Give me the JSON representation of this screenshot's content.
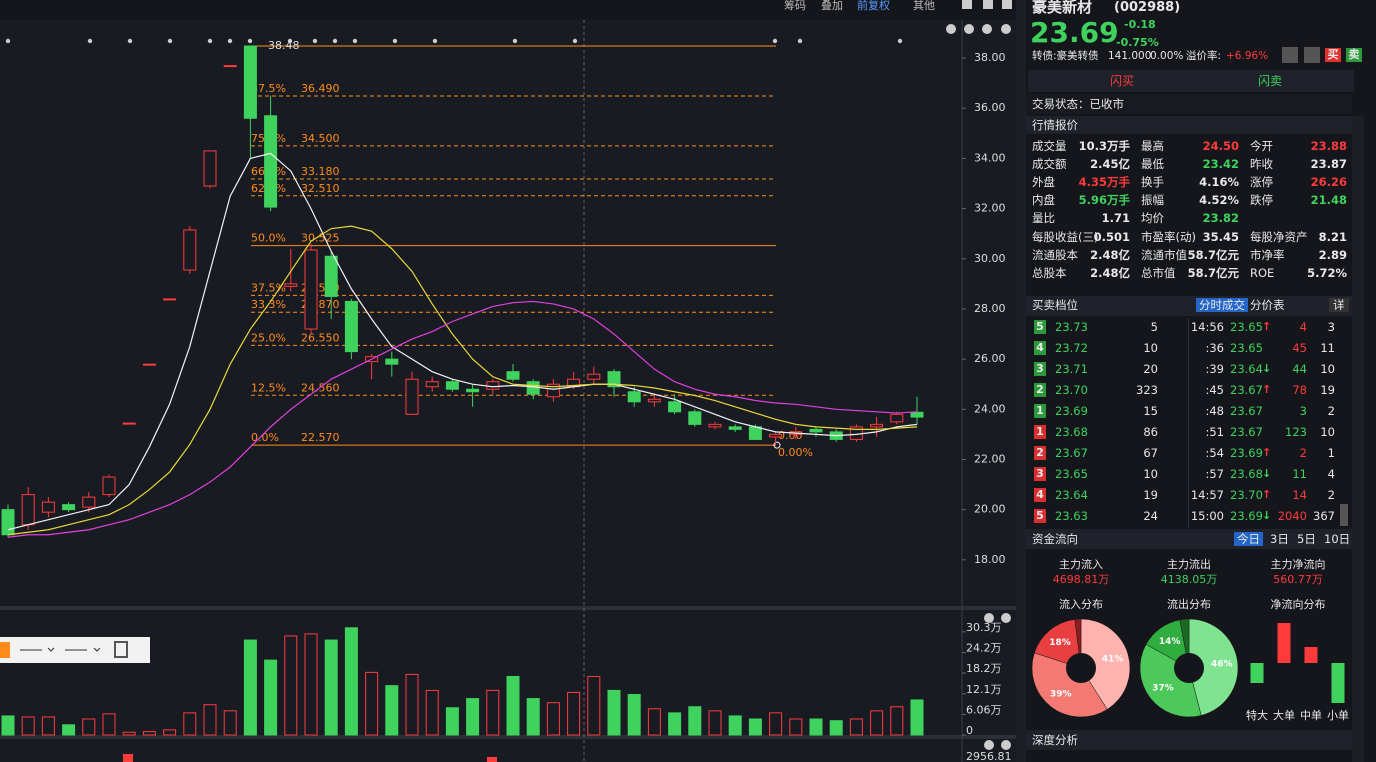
{
  "toolbar": [
    "筹码",
    "叠加",
    "前复权",
    "其他"
  ],
  "chart_data": [
    {
      "type": "candlestick",
      "open": [
        20.0,
        19.4,
        19.9,
        20.2,
        20.1,
        20.6,
        23.45,
        25.8,
        28.4,
        29.55,
        32.9,
        37.7,
        38.48,
        35.7,
        28.9,
        27.2,
        30.1,
        28.3,
        25.9,
        26.0,
        23.8,
        24.9,
        25.1,
        24.8,
        24.8,
        25.5,
        25.1,
        24.5,
        24.9,
        25.2,
        25.5,
        24.7,
        24.3,
        24.3,
        23.9,
        23.3,
        23.3,
        23.3,
        22.9,
        23.0,
        23.2,
        23.1,
        22.8,
        23.3,
        23.5,
        23.88
      ],
      "high": [
        20.2,
        20.9,
        20.5,
        20.3,
        20.7,
        21.4,
        23.45,
        25.8,
        28.4,
        31.3,
        34.3,
        37.7,
        38.48,
        36.5,
        30.4,
        30.6,
        30.3,
        28.4,
        26.2,
        26.3,
        25.5,
        25.3,
        25.2,
        25.0,
        25.2,
        25.8,
        25.2,
        25.2,
        25.5,
        25.7,
        25.6,
        24.9,
        24.6,
        24.6,
        24.0,
        23.5,
        23.4,
        23.4,
        23.1,
        23.3,
        23.3,
        23.2,
        23.4,
        23.7,
        23.9,
        24.5
      ],
      "low": [
        18.9,
        19.2,
        19.7,
        19.9,
        19.9,
        20.5,
        23.45,
        25.8,
        28.4,
        29.4,
        32.8,
        37.7,
        34.0,
        31.9,
        28.7,
        27.0,
        27.6,
        26.0,
        25.2,
        25.3,
        23.8,
        24.7,
        24.7,
        24.1,
        24.6,
        25.1,
        24.4,
        24.3,
        24.8,
        25.0,
        24.5,
        24.1,
        24.1,
        23.8,
        23.3,
        23.2,
        23.1,
        22.8,
        22.57,
        22.8,
        22.9,
        22.7,
        22.7,
        22.9,
        23.4,
        23.42
      ],
      "close": [
        19.0,
        20.6,
        20.3,
        20.0,
        20.5,
        21.3,
        23.45,
        25.8,
        28.4,
        31.15,
        34.3,
        37.7,
        35.6,
        32.06,
        29.0,
        30.35,
        28.5,
        26.3,
        26.1,
        25.8,
        25.2,
        25.1,
        24.8,
        24.7,
        25.1,
        25.2,
        24.6,
        25.0,
        25.2,
        25.4,
        24.9,
        24.3,
        24.4,
        23.9,
        23.4,
        23.4,
        23.2,
        22.8,
        23.0,
        23.1,
        23.1,
        22.8,
        23.3,
        23.4,
        23.8,
        23.69
      ],
      "up_color": "#ff3b3b",
      "down_color": "#3fd35e",
      "ylim": [
        16.2,
        38.72
      ],
      "yticks": [
        {
          "value": 18,
          "label": "18.00"
        },
        {
          "value": 20,
          "label": "20.00"
        },
        {
          "value": 22,
          "label": "22.00"
        },
        {
          "value": 24,
          "label": "24.00"
        },
        {
          "value": 26,
          "label": "26.00"
        },
        {
          "value": 28,
          "label": "28.00"
        },
        {
          "value": 30,
          "label": "30.00"
        },
        {
          "value": 32,
          "label": "32.00"
        },
        {
          "value": 34,
          "label": "34.00"
        },
        {
          "value": 36,
          "label": "36.00"
        },
        {
          "value": 38,
          "label": "38.00"
        }
      ],
      "ma_lines": [
        {
          "color": "#f2f2f2",
          "values": [
            19.2,
            19.4,
            19.6,
            19.8,
            20.0,
            20.2,
            21.0,
            22.5,
            24.2,
            26.5,
            29.5,
            32.5,
            34.0,
            34.2,
            33.5,
            32.0,
            30.3,
            28.8,
            27.6,
            26.5,
            26.0,
            25.5,
            25.2,
            25.0,
            24.9,
            24.95,
            24.9,
            24.8,
            24.9,
            25.0,
            25.0,
            24.8,
            24.6,
            24.4,
            24.1,
            23.8,
            23.5,
            23.3,
            23.1,
            23.05,
            23.0,
            22.95,
            23.0,
            23.1,
            23.3,
            23.4
          ]
        },
        {
          "color": "#e8d936",
          "values": [
            19.0,
            19.1,
            19.2,
            19.4,
            19.6,
            19.8,
            20.2,
            20.8,
            21.5,
            22.6,
            24.0,
            25.8,
            27.2,
            28.3,
            29.5,
            30.7,
            31.2,
            31.3,
            31.1,
            30.4,
            29.5,
            28.2,
            27.0,
            26.0,
            25.3,
            25.0,
            24.95,
            24.9,
            24.95,
            25.0,
            25.0,
            24.95,
            24.85,
            24.7,
            24.55,
            24.35,
            24.1,
            23.85,
            23.6,
            23.4,
            23.3,
            23.25,
            23.2,
            23.2,
            23.25,
            23.3
          ]
        },
        {
          "color": "#e040e0",
          "values": [
            18.9,
            19.0,
            19.0,
            19.1,
            19.2,
            19.4,
            19.6,
            19.9,
            20.2,
            20.6,
            21.1,
            21.7,
            22.5,
            23.3,
            24.0,
            24.6,
            25.2,
            25.6,
            26.0,
            26.4,
            26.8,
            27.1,
            27.5,
            27.8,
            28.1,
            28.25,
            28.3,
            28.2,
            28.0,
            27.6,
            27.0,
            26.3,
            25.6,
            25.1,
            24.8,
            24.6,
            24.5,
            24.35,
            24.25,
            24.2,
            24.1,
            24.0,
            23.95,
            23.9,
            23.85,
            23.9
          ]
        }
      ],
      "fib": {
        "color": "#ff8c1a",
        "high": {
          "value": 38.48,
          "label": "38.48"
        },
        "levels": [
          {
            "pct": "87.5%",
            "value": 36.49,
            "label": "36.490",
            "dashed": true
          },
          {
            "pct": "75.0%",
            "value": 34.5,
            "label": "34.500",
            "dashed": true
          },
          {
            "pct": "66.7%",
            "value": 33.18,
            "label": "33.180",
            "dashed": true
          },
          {
            "pct": "62.5%",
            "value": 32.51,
            "label": "32.510",
            "dashed": true
          },
          {
            "pct": "50.0%",
            "value": 30.525,
            "label": "30.525",
            "dashed": false
          },
          {
            "pct": "37.5%",
            "value": 28.54,
            "label": "28.540",
            "dashed": true
          },
          {
            "pct": "33.3%",
            "value": 27.87,
            "label": "27.870",
            "dashed": true
          },
          {
            "pct": "25.0%",
            "value": 26.55,
            "label": "26.550",
            "dashed": true
          },
          {
            "pct": "12.5%",
            "value": 24.56,
            "label": "24.560",
            "dashed": true
          },
          {
            "pct": "0.0%",
            "value": 22.57,
            "label": "22.570",
            "dashed": false
          }
        ],
        "low_labels": [
          "0.00",
          "0.00%"
        ]
      }
    },
    {
      "type": "bar",
      "values": [
        5.6,
        5.3,
        5.3,
        3.0,
        4.7,
        6.2,
        0.8,
        1.0,
        1.5,
        6.5,
        8.9,
        7.1,
        27.9,
        22.0,
        29.1,
        29.7,
        27.9,
        31.5,
        18.4,
        14.5,
        17.8,
        13.1,
        8.0,
        10.7,
        13.1,
        17.2,
        10.7,
        9.5,
        12.5,
        17.2,
        13.1,
        11.9,
        7.7,
        6.5,
        8.3,
        7.1,
        5.6,
        4.7,
        6.5,
        4.7,
        4.7,
        4.2,
        4.7,
        7.1,
        8.3,
        10.3
      ],
      "ylim": [
        0,
        33.2
      ],
      "yticks": [
        0,
        {
          "value": 6.06,
          "label": "6.06万"
        },
        {
          "value": 12.1,
          "label": "12.1万"
        },
        {
          "value": 18.2,
          "label": "18.2万"
        },
        {
          "value": 24.2,
          "label": "24.2万"
        },
        {
          "value": 30.3,
          "label": "30.3万"
        }
      ]
    }
  ],
  "indicator_label": "2956.81",
  "stock": {
    "name": "豪美新材",
    "code": "(002988)",
    "price": "23.69",
    "change": "-0.18",
    "change_pct": "-0.75%",
    "bond": "转债:豪美转债",
    "bond_price": "141.000",
    "bond_pct": "0.00%",
    "premium_label": "溢价率:",
    "premium": "+6.96%",
    "buy": "买",
    "sell": "卖"
  },
  "flash": [
    "闪买",
    "闪卖"
  ],
  "status": "交易状态：已收市",
  "quote": {
    "title": "行情报价",
    "rows": [
      [
        {
          "label": "成交量",
          "value": "10.3万手",
          "color": "#e8e8e8"
        },
        {
          "label": "最高",
          "value": "24.50",
          "color": "#ff3b3b"
        },
        {
          "label": "今开",
          "value": "23.88",
          "color": "#ff3b3b"
        }
      ],
      [
        {
          "label": "成交额",
          "value": "2.45亿",
          "color": "#e8e8e8"
        },
        {
          "label": "最低",
          "value": "23.42",
          "color": "#3fd35e"
        },
        {
          "label": "昨收",
          "value": "23.87",
          "color": "#e8e8e8"
        }
      ],
      [
        {
          "label": "外盘",
          "value": "4.35万手",
          "color": "#ff3b3b"
        },
        {
          "label": "换手",
          "value": "4.16%",
          "color": "#e8e8e8"
        },
        {
          "label": "涨停",
          "value": "26.26",
          "color": "#ff3b3b"
        }
      ],
      [
        {
          "label": "内盘",
          "value": "5.96万手",
          "color": "#3fd35e"
        },
        {
          "label": "振幅",
          "value": "4.52%",
          "color": "#e8e8e8"
        },
        {
          "label": "跌停",
          "value": "21.48",
          "color": "#3fd35e"
        }
      ],
      [
        {
          "label": "量比",
          "value": "1.71",
          "color": "#e8e8e8"
        },
        {
          "label": "均价",
          "value": "23.82",
          "color": "#3fd35e"
        }
      ],
      [
        {
          "label": "每股收益(三)",
          "value": "0.501",
          "color": "#e8e8e8"
        },
        {
          "label": "市盈率(动)",
          "value": "35.45",
          "color": "#e8e8e8"
        },
        {
          "label": "每股净资产",
          "value": "8.21",
          "color": "#e8e8e8"
        }
      ],
      [
        {
          "label": "流通股本",
          "value": "2.48亿",
          "color": "#e8e8e8"
        },
        {
          "label": "流通市值",
          "value": "58.7亿元",
          "color": "#e8e8e8"
        },
        {
          "label": "市净率",
          "value": "2.89",
          "color": "#e8e8e8"
        }
      ],
      [
        {
          "label": "总股本",
          "value": "2.48亿",
          "color": "#e8e8e8"
        },
        {
          "label": "总市值",
          "value": "58.7亿元",
          "color": "#e8e8e8"
        },
        {
          "label": "ROE",
          "value": "5.72%",
          "color": "#e8e8e8"
        }
      ]
    ]
  },
  "book": {
    "title": "买卖档位",
    "tabs": [
      "分时成交",
      "分价表",
      "详"
    ],
    "asks": [
      {
        "level": "5",
        "price": "23.73",
        "vol": "5"
      },
      {
        "level": "4",
        "price": "23.72",
        "vol": "10"
      },
      {
        "level": "3",
        "price": "23.71",
        "vol": "20"
      },
      {
        "level": "2",
        "price": "23.70",
        "vol": "323"
      },
      {
        "level": "1",
        "price": "23.69",
        "vol": "15"
      }
    ],
    "bids": [
      {
        "level": "1",
        "price": "23.68",
        "vol": "86"
      },
      {
        "level": "2",
        "price": "23.67",
        "vol": "67"
      },
      {
        "level": "3",
        "price": "23.65",
        "vol": "10"
      },
      {
        "level": "4",
        "price": "23.64",
        "vol": "19"
      },
      {
        "level": "5",
        "price": "23.63",
        "vol": "24"
      }
    ],
    "trades": [
      {
        "time": "14:56",
        "price": "23.65",
        "arrow": "↑",
        "vol": "4",
        "count": "3",
        "color": "#ff3b3b"
      },
      {
        "time": ":36",
        "price": "23.65",
        "vol": "45",
        "count": "11",
        "color": "#ff3b3b"
      },
      {
        "time": ":39",
        "price": "23.64",
        "arrow": "↓",
        "vol": "44",
        "count": "10",
        "color": "#3fd35e"
      },
      {
        "time": ":45",
        "price": "23.67",
        "arrow": "↑",
        "vol": "78",
        "count": "19",
        "color": "#ff3b3b"
      },
      {
        "time": ":48",
        "price": "23.67",
        "vol": "3",
        "count": "2",
        "color": "#3fd35e"
      },
      {
        "time": ":51",
        "price": "23.67",
        "vol": "123",
        "count": "10",
        "color": "#3fd35e"
      },
      {
        "time": ":54",
        "price": "23.69",
        "arrow": "↑",
        "vol": "2",
        "count": "1",
        "color": "#ff3b3b"
      },
      {
        "time": ":57",
        "price": "23.68",
        "arrow": "↓",
        "vol": "11",
        "count": "4",
        "color": "#3fd35e"
      },
      {
        "time": "14:57",
        "price": "23.70",
        "arrow": "↑",
        "vol": "14",
        "count": "2",
        "color": "#ff3b3b"
      },
      {
        "time": "15:00",
        "price": "23.69",
        "arrow": "↓",
        "vol": "2040",
        "count": "367",
        "color": "#ff3b3b"
      }
    ]
  },
  "fund": {
    "title": "资金流向",
    "tabs": [
      "今日",
      "3日",
      "5日",
      "10日"
    ],
    "stats": [
      {
        "label": "主力流入",
        "value": "4698.81万",
        "color": "#ff3b3b"
      },
      {
        "label": "主力流出",
        "value": "4138.05万",
        "color": "#3fd35e"
      },
      {
        "label": "主力净流向",
        "value": "560.77万",
        "color": "#ff3b3b"
      }
    ],
    "pies": [
      {
        "title": "流入分布",
        "values": [
          41,
          39,
          18,
          2
        ],
        "value_labels": [
          "41%",
          "39%",
          "18%",
          null
        ],
        "colors": [
          "#ffb3ae",
          "#f27a73",
          "#e84040",
          "#8f1f1f"
        ]
      },
      {
        "title": "流出分布",
        "values": [
          46,
          37,
          14,
          3
        ],
        "value_labels": [
          "46%",
          "37%",
          "14%",
          null
        ],
        "colors": [
          "#7fe38f",
          "#4cc95a",
          "#2fae3f",
          "#1d6b23"
        ]
      }
    ],
    "net": {
      "title": "净流向分布",
      "categories": [
        "特大",
        "大单",
        "中单",
        "小单"
      ],
      "values": [
        -100,
        200,
        80,
        -200
      ]
    }
  },
  "deep": "深度分析"
}
